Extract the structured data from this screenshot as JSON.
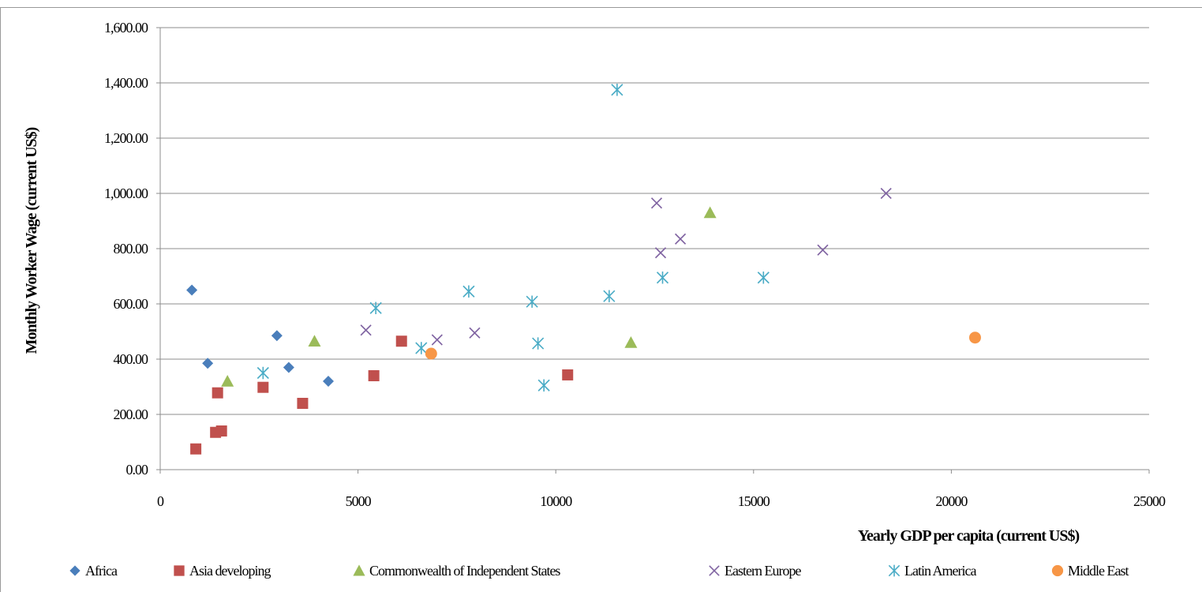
{
  "chart_data": {
    "type": "scatter",
    "title": "",
    "xlabel": "Yearly GDP per capita (current US$)",
    "ylabel": "Monthly Worker Wage (current US$)",
    "xlim": [
      0,
      25000
    ],
    "ylim": [
      0,
      1600
    ],
    "x_ticks": [
      0,
      5000,
      10000,
      15000,
      20000,
      25000
    ],
    "x_tick_labels": [
      "0",
      "5000",
      "10000",
      "15000",
      "20000",
      "25000"
    ],
    "y_ticks": [
      0,
      200,
      400,
      600,
      800,
      1000,
      1200,
      1400,
      1600
    ],
    "y_tick_labels": [
      "0.00",
      "200.00",
      "400.00",
      "600.00",
      "800.00",
      "1,000.00",
      "1,200.00",
      "1,400.00",
      "1,600.00"
    ],
    "grid": "horizontal",
    "legend_position": "bottom",
    "series": [
      {
        "name": "Africa",
        "marker": "diamond",
        "color": "#4a7ebb",
        "points": [
          [
            800,
            650
          ],
          [
            1200,
            385
          ],
          [
            2950,
            485
          ],
          [
            3250,
            370
          ],
          [
            4250,
            320
          ]
        ]
      },
      {
        "name": "Asia developing",
        "marker": "square",
        "color": "#c0504d",
        "points": [
          [
            900,
            75
          ],
          [
            1400,
            135
          ],
          [
            1450,
            278
          ],
          [
            1550,
            140
          ],
          [
            2600,
            298
          ],
          [
            3600,
            240
          ],
          [
            5400,
            340
          ],
          [
            6100,
            465
          ],
          [
            10300,
            343
          ]
        ]
      },
      {
        "name": "Commonwealth of Independent States",
        "marker": "triangle",
        "color": "#9bbb59",
        "points": [
          [
            1700,
            320
          ],
          [
            3900,
            465
          ],
          [
            11900,
            460
          ],
          [
            13900,
            930
          ]
        ]
      },
      {
        "name": "Eastern Europe",
        "marker": "x",
        "color": "#8064a2",
        "points": [
          [
            5200,
            505
          ],
          [
            7000,
            470
          ],
          [
            7950,
            495
          ],
          [
            12550,
            965
          ],
          [
            12650,
            785
          ],
          [
            13150,
            835
          ],
          [
            16750,
            795
          ],
          [
            18350,
            1000
          ]
        ]
      },
      {
        "name": "Latin America",
        "marker": "star",
        "color": "#4bacc6",
        "points": [
          [
            2600,
            350
          ],
          [
            5450,
            585
          ],
          [
            6600,
            440
          ],
          [
            7800,
            645
          ],
          [
            9400,
            608
          ],
          [
            9550,
            457
          ],
          [
            9700,
            305
          ],
          [
            11350,
            628
          ],
          [
            11550,
            1375
          ],
          [
            12700,
            695
          ],
          [
            15250,
            695
          ]
        ]
      },
      {
        "name": "Middle East",
        "marker": "circle",
        "color": "#f79646",
        "points": [
          [
            6850,
            420
          ],
          [
            20600,
            478
          ]
        ]
      }
    ]
  }
}
